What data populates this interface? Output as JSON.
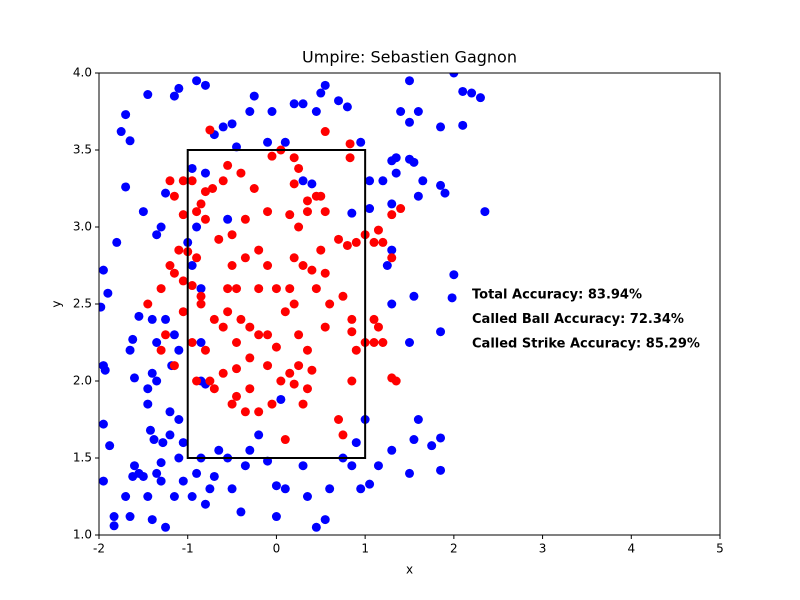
{
  "chart_data": {
    "type": "scatter",
    "title": "Umpire: Sebastien Gagnon",
    "x_label": "x",
    "y_label": "y",
    "xlim": [
      -2,
      5
    ],
    "ylim": [
      1.0,
      4.0
    ],
    "xticks": [
      -2,
      -1,
      0,
      1,
      2,
      3,
      4,
      5
    ],
    "yticks": [
      {
        "value": 1.0,
        "label": "1.0"
      },
      {
        "value": 1.5,
        "label": "1.5"
      },
      {
        "value": 2.0,
        "label": "2.0"
      },
      {
        "value": 2.5,
        "label": "2.5"
      },
      {
        "value": 3.0,
        "label": "3.0"
      },
      {
        "value": 3.5,
        "label": "3.5"
      },
      {
        "value": 4.0,
        "label": "4.0"
      }
    ],
    "zone": {
      "x": [
        -1,
        1
      ],
      "y": [
        1.5,
        3.5
      ],
      "color": "#000000"
    },
    "annotations": [
      "Total Accuracy: 83.94%",
      "Called Ball Accuracy: 72.34%",
      "Called Strike Accuracy: 85.29%"
    ],
    "series": [
      {
        "color": "#0000ff",
        "x": [
          -1.95,
          -1.98,
          -1.9,
          -1.8,
          -1.95,
          -1.93,
          -1.95,
          -1.88,
          -1.95,
          -1.83,
          -1.83,
          -1.7,
          -1.65,
          -1.62,
          -1.6,
          -1.55,
          -1.5,
          -1.45,
          -1.4,
          -1.35,
          -1.3,
          -1.42,
          -1.38,
          -1.28,
          -1.2,
          -1.45,
          -1.4,
          -1.6,
          -1.45,
          -1.65,
          -1.62,
          -1.55,
          -1.4,
          -1.35,
          -1.25,
          -1.15,
          -1.1,
          -1.18,
          -1.2,
          -1.1,
          -1.05,
          -1.1,
          -1.3,
          -1.25,
          -1.15,
          -1.05,
          -0.95,
          -0.9,
          -0.85,
          -0.8,
          -0.75,
          -0.7,
          -0.65,
          -0.55,
          -0.5,
          -0.4,
          -0.35,
          -0.3,
          -0.2,
          -0.1,
          0,
          0.1,
          0,
          0.3,
          0.35,
          0.45,
          0.55,
          0.6,
          0.75,
          0.85,
          0.9,
          0.95,
          1.05,
          1,
          1.15,
          1.3,
          1.5,
          1.55,
          1.6,
          1.75,
          1.85,
          1.85,
          -1.7,
          -1.75,
          -1.65,
          -1.5,
          -1.45,
          -1.35,
          -1.3,
          -1.25,
          -1.15,
          -1.1,
          -0.9,
          -0.8,
          -0.7,
          -0.6,
          -0.5,
          -0.45,
          -0.3,
          -0.25,
          -0.1,
          -0.05,
          0.1,
          0.2,
          0.3,
          0.45,
          0.5,
          0.55,
          0.7,
          0.8,
          0.95,
          1.05,
          1.2,
          1.3,
          1.35,
          1.35,
          1.5,
          1.55,
          1.4,
          1.5,
          1.6,
          1.65,
          1.85,
          1.9,
          1.85,
          2.1,
          2.1,
          2.2,
          2.3,
          2.0,
          2.35,
          1.5,
          1.6,
          -1.7,
          -0.8,
          -0.55,
          0.3,
          0.4,
          1.3,
          1.3,
          1.25,
          1.3,
          1.55,
          1.5,
          1.85,
          1.98,
          2.0,
          1.05,
          -0.95,
          -0.9,
          -0.95,
          -0.85,
          -0.85,
          -0.85,
          -1.35,
          -0.8,
          0.05,
          0.85,
          -1.0
        ],
        "values": [
          2.72,
          2.48,
          2.57,
          2.9,
          2.1,
          2.07,
          1.72,
          1.58,
          1.35,
          1.12,
          1.06,
          1.25,
          1.12,
          1.38,
          1.45,
          1.4,
          1.38,
          1.25,
          1.1,
          1.4,
          1.47,
          1.68,
          1.62,
          1.6,
          1.65,
          1.85,
          2.05,
          2.02,
          1.95,
          2.2,
          2.27,
          2.42,
          2.4,
          2.25,
          2.4,
          2.3,
          2.2,
          2.1,
          1.8,
          1.75,
          1.6,
          1.5,
          1.35,
          1.05,
          1.25,
          1.35,
          1.25,
          1.4,
          1.5,
          1.2,
          1.3,
          1.38,
          1.55,
          1.5,
          1.3,
          1.15,
          1.45,
          1.55,
          1.65,
          1.48,
          1.32,
          1.3,
          1.12,
          1.45,
          1.25,
          1.05,
          1.1,
          1.3,
          1.5,
          1.45,
          1.6,
          1.3,
          1.33,
          1.75,
          1.45,
          1.55,
          1.4,
          1.62,
          1.75,
          1.58,
          1.63,
          1.42,
          3.73,
          3.62,
          3.56,
          3.1,
          3.86,
          2.95,
          3.0,
          3.22,
          3.85,
          3.9,
          3.95,
          3.92,
          3.6,
          3.65,
          3.67,
          3.52,
          3.75,
          3.85,
          3.55,
          3.75,
          3.55,
          3.8,
          3.8,
          3.75,
          3.87,
          3.92,
          3.82,
          3.78,
          3.55,
          3.3,
          3.3,
          3.43,
          3.45,
          3.35,
          3.44,
          3.42,
          3.75,
          3.68,
          3.2,
          3.3,
          3.27,
          3.22,
          3.65,
          3.66,
          3.88,
          3.87,
          3.84,
          4.0,
          3.1,
          3.95,
          3.75,
          3.26,
          3.35,
          3.05,
          3.3,
          3.28,
          3.15,
          2.85,
          2.75,
          2.5,
          2.55,
          2.25,
          2.32,
          2.54,
          2.69,
          3.12,
          3.38,
          3.0,
          2.75,
          2.6,
          2.25,
          2.0,
          2.0,
          1.98,
          1.88,
          3.09,
          2.9
        ]
      },
      {
        "color": "#ff0000",
        "x": [
          -0.75,
          0.55,
          0.83,
          0.83,
          -1.2,
          -1.15,
          -1.05,
          -0.95,
          -0.8,
          -0.72,
          -0.55,
          -0.6,
          -0.4,
          -0.25,
          -0.05,
          0.05,
          0.2,
          0.25,
          0.2,
          0.35,
          0.45,
          0.5,
          0.55,
          0.35,
          0.15,
          -0.1,
          -0.35,
          -0.5,
          -0.65,
          -0.8,
          -0.9,
          -0.85,
          -1.05,
          -1.1,
          -1.0,
          -0.9,
          -1.2,
          -1.15,
          -1.05,
          -0.95,
          -0.85,
          -1.3,
          -1.45,
          -1.05,
          -1.25,
          -1.3,
          -1.15,
          -0.95,
          -0.8,
          -0.9,
          -0.7,
          -0.75,
          -0.6,
          -0.5,
          -0.45,
          -0.3,
          -0.2,
          -0.05,
          0.1,
          0.2,
          0.25,
          0.35,
          0.4,
          0.7,
          0.75,
          0.85,
          0.9,
          0.85,
          0.85,
          1.0,
          1.1,
          1.2,
          1.1,
          1.15,
          1.3,
          1.35,
          1.3,
          1.2,
          1.1,
          1.0,
          0.9,
          0.8,
          0.7,
          0.5,
          0.4,
          0.55,
          0.6,
          0.45,
          0.3,
          0.2,
          0.15,
          0.2,
          0.1,
          0,
          -0.1,
          -0.2,
          -0.35,
          -0.45,
          -0.55,
          -0.4,
          -0.3,
          -0.2,
          -0.1,
          0,
          0.15,
          -0.1,
          -0.3,
          -0.45,
          -0.6,
          -0.7,
          -0.85,
          -0.55,
          0.25,
          0.35,
          0.55,
          0.75,
          1.4,
          1.3,
          1.15,
          0.25,
          -0.2,
          -0.5,
          0.05,
          -0.35,
          0.3,
          -0.45
        ],
        "values": [
          3.63,
          3.62,
          3.54,
          3.45,
          3.3,
          3.2,
          3.3,
          3.3,
          3.23,
          3.25,
          3.4,
          3.3,
          3.35,
          3.25,
          3.46,
          3.5,
          3.45,
          3.38,
          3.28,
          3.17,
          3.2,
          3.2,
          3.1,
          3.1,
          3.08,
          3.1,
          3.05,
          2.95,
          2.92,
          3.05,
          3.1,
          3.15,
          3.08,
          2.85,
          2.84,
          2.8,
          2.75,
          2.7,
          2.65,
          2.62,
          2.5,
          2.6,
          2.5,
          2.45,
          2.3,
          2.2,
          2.1,
          2.25,
          2.2,
          2.0,
          1.95,
          2.0,
          2.05,
          1.85,
          1.9,
          1.95,
          1.8,
          1.85,
          1.62,
          1.98,
          2.1,
          1.95,
          2.07,
          1.75,
          1.65,
          2.0,
          2.2,
          2.32,
          2.4,
          2.25,
          2.25,
          2.25,
          2.4,
          2.35,
          2.02,
          2.0,
          2.8,
          2.9,
          2.9,
          2.95,
          2.9,
          2.88,
          2.92,
          2.85,
          2.72,
          2.7,
          2.5,
          2.6,
          2.75,
          2.8,
          2.6,
          2.5,
          2.45,
          2.6,
          2.75,
          2.85,
          2.8,
          2.6,
          2.45,
          2.4,
          2.35,
          2.3,
          2.3,
          2.22,
          2.05,
          2.1,
          2.15,
          2.25,
          2.35,
          2.4,
          2.55,
          2.6,
          2.3,
          2.2,
          2.35,
          2.55,
          3.12,
          3.08,
          2.98,
          3.0,
          2.6,
          2.75,
          2.0,
          1.8,
          1.85,
          2.08
        ]
      }
    ]
  }
}
